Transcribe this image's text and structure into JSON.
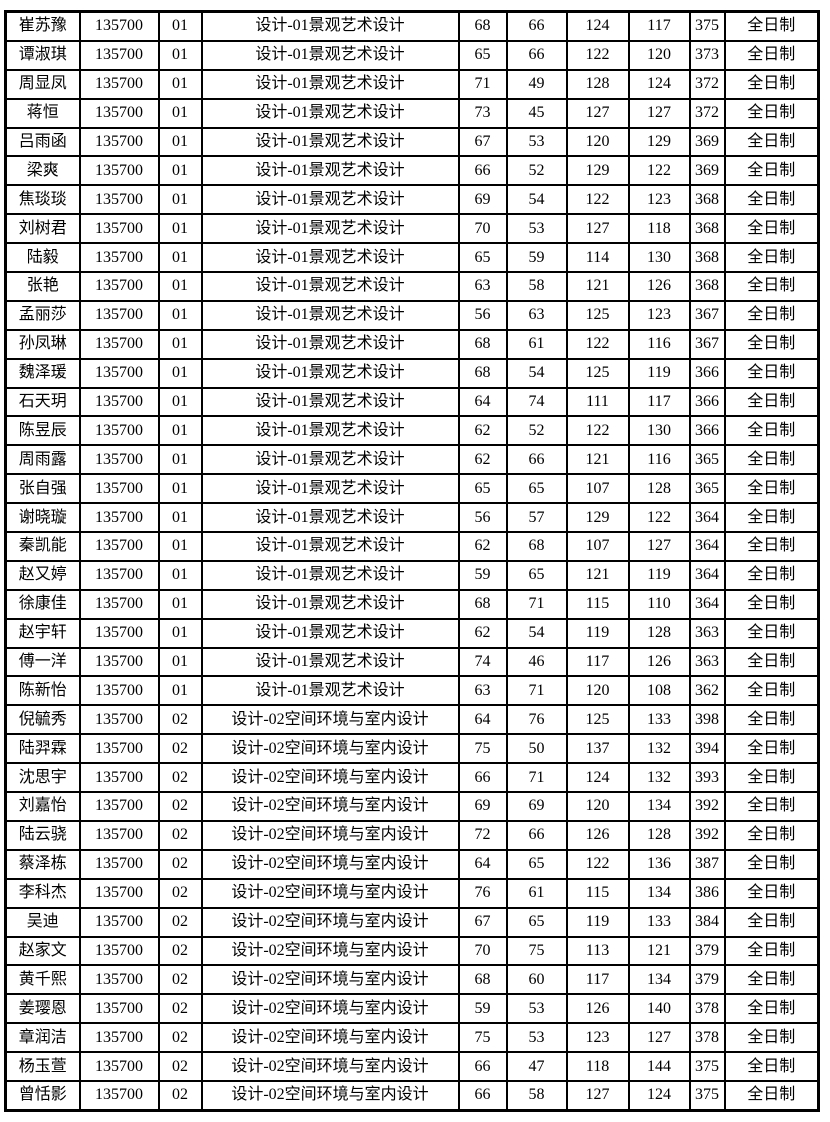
{
  "colors": {
    "border": "#000000",
    "background": "#ffffff",
    "text": "#000000"
  },
  "table": {
    "columns": [
      "name",
      "code",
      "sub_code",
      "program",
      "score1",
      "score2",
      "score3",
      "score4",
      "total",
      "study_mode"
    ],
    "rows": [
      [
        "崔苏豫",
        "135700",
        "01",
        "设计-01景观艺术设计",
        68,
        66,
        124,
        117,
        375,
        "全日制"
      ],
      [
        "谭淑琪",
        "135700",
        "01",
        "设计-01景观艺术设计",
        65,
        66,
        122,
        120,
        373,
        "全日制"
      ],
      [
        "周显凤",
        "135700",
        "01",
        "设计-01景观艺术设计",
        71,
        49,
        128,
        124,
        372,
        "全日制"
      ],
      [
        "蒋恒",
        "135700",
        "01",
        "设计-01景观艺术设计",
        73,
        45,
        127,
        127,
        372,
        "全日制"
      ],
      [
        "吕雨函",
        "135700",
        "01",
        "设计-01景观艺术设计",
        67,
        53,
        120,
        129,
        369,
        "全日制"
      ],
      [
        "梁爽",
        "135700",
        "01",
        "设计-01景观艺术设计",
        66,
        52,
        129,
        122,
        369,
        "全日制"
      ],
      [
        "焦琰琰",
        "135700",
        "01",
        "设计-01景观艺术设计",
        69,
        54,
        122,
        123,
        368,
        "全日制"
      ],
      [
        "刘树君",
        "135700",
        "01",
        "设计-01景观艺术设计",
        70,
        53,
        127,
        118,
        368,
        "全日制"
      ],
      [
        "陆毅",
        "135700",
        "01",
        "设计-01景观艺术设计",
        65,
        59,
        114,
        130,
        368,
        "全日制"
      ],
      [
        "张艳",
        "135700",
        "01",
        "设计-01景观艺术设计",
        63,
        58,
        121,
        126,
        368,
        "全日制"
      ],
      [
        "孟丽莎",
        "135700",
        "01",
        "设计-01景观艺术设计",
        56,
        63,
        125,
        123,
        367,
        "全日制"
      ],
      [
        "孙凤琳",
        "135700",
        "01",
        "设计-01景观艺术设计",
        68,
        61,
        122,
        116,
        367,
        "全日制"
      ],
      [
        "魏泽瑗",
        "135700",
        "01",
        "设计-01景观艺术设计",
        68,
        54,
        125,
        119,
        366,
        "全日制"
      ],
      [
        "石天玥",
        "135700",
        "01",
        "设计-01景观艺术设计",
        64,
        74,
        111,
        117,
        366,
        "全日制"
      ],
      [
        "陈昱辰",
        "135700",
        "01",
        "设计-01景观艺术设计",
        62,
        52,
        122,
        130,
        366,
        "全日制"
      ],
      [
        "周雨露",
        "135700",
        "01",
        "设计-01景观艺术设计",
        62,
        66,
        121,
        116,
        365,
        "全日制"
      ],
      [
        "张自强",
        "135700",
        "01",
        "设计-01景观艺术设计",
        65,
        65,
        107,
        128,
        365,
        "全日制"
      ],
      [
        "谢晓璇",
        "135700",
        "01",
        "设计-01景观艺术设计",
        56,
        57,
        129,
        122,
        364,
        "全日制"
      ],
      [
        "秦凯能",
        "135700",
        "01",
        "设计-01景观艺术设计",
        62,
        68,
        107,
        127,
        364,
        "全日制"
      ],
      [
        "赵又婷",
        "135700",
        "01",
        "设计-01景观艺术设计",
        59,
        65,
        121,
        119,
        364,
        "全日制"
      ],
      [
        "徐康佳",
        "135700",
        "01",
        "设计-01景观艺术设计",
        68,
        71,
        115,
        110,
        364,
        "全日制"
      ],
      [
        "赵宇轩",
        "135700",
        "01",
        "设计-01景观艺术设计",
        62,
        54,
        119,
        128,
        363,
        "全日制"
      ],
      [
        "傅一洋",
        "135700",
        "01",
        "设计-01景观艺术设计",
        74,
        46,
        117,
        126,
        363,
        "全日制"
      ],
      [
        "陈新怡",
        "135700",
        "01",
        "设计-01景观艺术设计",
        63,
        71,
        120,
        108,
        362,
        "全日制"
      ],
      [
        "倪毓秀",
        "135700",
        "02",
        "设计-02空间环境与室内设计",
        64,
        76,
        125,
        133,
        398,
        "全日制"
      ],
      [
        "陆羿霖",
        "135700",
        "02",
        "设计-02空间环境与室内设计",
        75,
        50,
        137,
        132,
        394,
        "全日制"
      ],
      [
        "沈思宇",
        "135700",
        "02",
        "设计-02空间环境与室内设计",
        66,
        71,
        124,
        132,
        393,
        "全日制"
      ],
      [
        "刘嘉怡",
        "135700",
        "02",
        "设计-02空间环境与室内设计",
        69,
        69,
        120,
        134,
        392,
        "全日制"
      ],
      [
        "陆云骁",
        "135700",
        "02",
        "设计-02空间环境与室内设计",
        72,
        66,
        126,
        128,
        392,
        "全日制"
      ],
      [
        "蔡泽栋",
        "135700",
        "02",
        "设计-02空间环境与室内设计",
        64,
        65,
        122,
        136,
        387,
        "全日制"
      ],
      [
        "李科杰",
        "135700",
        "02",
        "设计-02空间环境与室内设计",
        76,
        61,
        115,
        134,
        386,
        "全日制"
      ],
      [
        "吴迪",
        "135700",
        "02",
        "设计-02空间环境与室内设计",
        67,
        65,
        119,
        133,
        384,
        "全日制"
      ],
      [
        "赵家文",
        "135700",
        "02",
        "设计-02空间环境与室内设计",
        70,
        75,
        113,
        121,
        379,
        "全日制"
      ],
      [
        "黄千熙",
        "135700",
        "02",
        "设计-02空间环境与室内设计",
        68,
        60,
        117,
        134,
        379,
        "全日制"
      ],
      [
        "姜璎恩",
        "135700",
        "02",
        "设计-02空间环境与室内设计",
        59,
        53,
        126,
        140,
        378,
        "全日制"
      ],
      [
        "章润洁",
        "135700",
        "02",
        "设计-02空间环境与室内设计",
        75,
        53,
        123,
        127,
        378,
        "全日制"
      ],
      [
        "杨玉萱",
        "135700",
        "02",
        "设计-02空间环境与室内设计",
        66,
        47,
        118,
        144,
        375,
        "全日制"
      ],
      [
        "曾恬影",
        "135700",
        "02",
        "设计-02空间环境与室内设计",
        66,
        58,
        127,
        124,
        375,
        "全日制"
      ]
    ]
  }
}
